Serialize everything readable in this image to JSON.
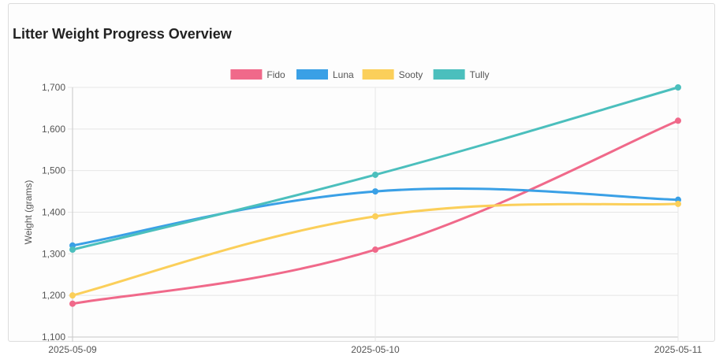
{
  "card": {
    "title": "Litter Weight Progress Overview"
  },
  "chart_data": {
    "type": "line",
    "title": "Litter Weight Progress Overview",
    "xlabel": "",
    "ylabel": "Weight (grams)",
    "categories": [
      "2025-05-09",
      "2025-05-10",
      "2025-05-11"
    ],
    "ylim": [
      1100,
      1700
    ],
    "yticks": [
      1100,
      1200,
      1300,
      1400,
      1500,
      1600,
      1700
    ],
    "ytick_labels": [
      "1,100",
      "1,200",
      "1,300",
      "1,400",
      "1,500",
      "1,600",
      "1,700"
    ],
    "grid": true,
    "legend_position": "top",
    "series": [
      {
        "name": "Fido",
        "color": "#f0698a",
        "values": [
          1180,
          1310,
          1620
        ]
      },
      {
        "name": "Luna",
        "color": "#3aa0e6",
        "values": [
          1320,
          1450,
          1430
        ]
      },
      {
        "name": "Sooty",
        "color": "#fbcf5a",
        "values": [
          1200,
          1390,
          1420
        ]
      },
      {
        "name": "Tully",
        "color": "#4bbfbd",
        "values": [
          1310,
          1490,
          1700
        ]
      }
    ]
  }
}
